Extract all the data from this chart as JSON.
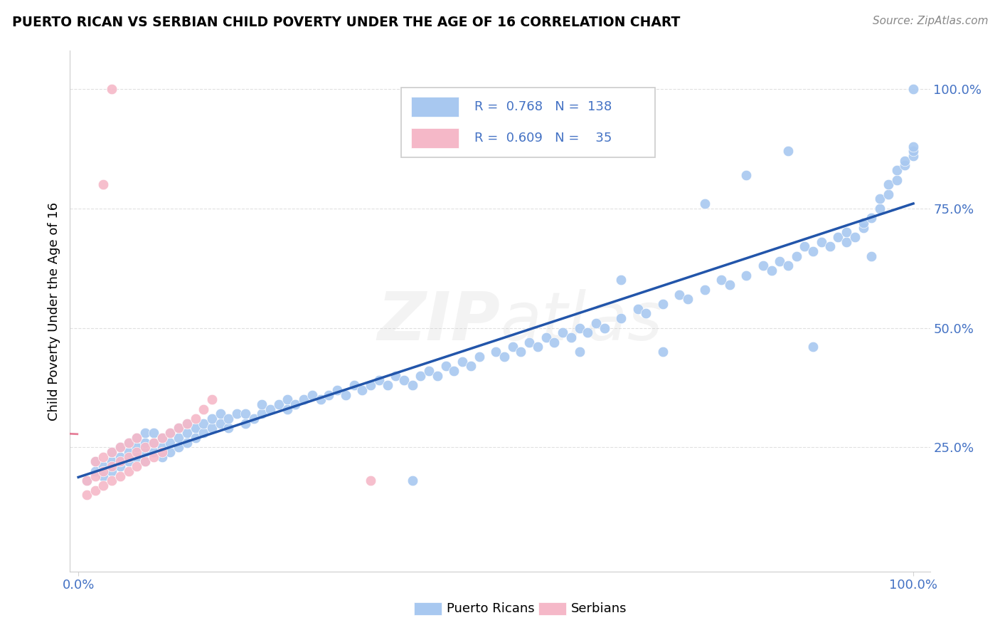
{
  "title": "PUERTO RICAN VS SERBIAN CHILD POVERTY UNDER THE AGE OF 16 CORRELATION CHART",
  "source": "Source: ZipAtlas.com",
  "ylabel": "Child Poverty Under the Age of 16",
  "ytick_labels": [
    "25.0%",
    "50.0%",
    "75.0%",
    "100.0%"
  ],
  "ytick_positions": [
    0.25,
    0.5,
    0.75,
    1.0
  ],
  "pr_color": "#a8c8f0",
  "sr_color": "#f5b8c8",
  "pr_line_color": "#2255aa",
  "sr_line_color": "#e06080",
  "legend_text_color": "#4472c4",
  "watermark": "ZIPatlas",
  "pr_x": [
    0.01,
    0.02,
    0.02,
    0.03,
    0.03,
    0.04,
    0.04,
    0.04,
    0.05,
    0.05,
    0.05,
    0.06,
    0.06,
    0.06,
    0.07,
    0.07,
    0.07,
    0.08,
    0.08,
    0.08,
    0.08,
    0.09,
    0.09,
    0.09,
    0.1,
    0.1,
    0.1,
    0.11,
    0.11,
    0.11,
    0.12,
    0.12,
    0.12,
    0.13,
    0.13,
    0.13,
    0.14,
    0.14,
    0.15,
    0.15,
    0.16,
    0.16,
    0.17,
    0.17,
    0.18,
    0.18,
    0.19,
    0.2,
    0.2,
    0.21,
    0.22,
    0.22,
    0.23,
    0.24,
    0.25,
    0.25,
    0.26,
    0.27,
    0.28,
    0.29,
    0.3,
    0.31,
    0.32,
    0.33,
    0.34,
    0.35,
    0.36,
    0.37,
    0.38,
    0.39,
    0.4,
    0.41,
    0.42,
    0.43,
    0.44,
    0.45,
    0.46,
    0.47,
    0.48,
    0.5,
    0.51,
    0.52,
    0.53,
    0.54,
    0.55,
    0.56,
    0.57,
    0.58,
    0.59,
    0.6,
    0.61,
    0.62,
    0.63,
    0.65,
    0.67,
    0.68,
    0.7,
    0.72,
    0.73,
    0.75,
    0.77,
    0.78,
    0.8,
    0.82,
    0.83,
    0.84,
    0.85,
    0.86,
    0.87,
    0.88,
    0.89,
    0.9,
    0.91,
    0.92,
    0.92,
    0.93,
    0.94,
    0.94,
    0.95,
    0.96,
    0.96,
    0.97,
    0.97,
    0.98,
    0.98,
    0.99,
    0.99,
    1.0,
    1.0,
    1.0,
    1.0,
    0.75,
    0.8,
    0.85,
    0.88,
    0.95,
    0.6,
    0.65,
    0.7,
    0.4
  ],
  "pr_y": [
    0.18,
    0.2,
    0.22,
    0.19,
    0.21,
    0.2,
    0.22,
    0.24,
    0.21,
    0.23,
    0.25,
    0.22,
    0.24,
    0.26,
    0.23,
    0.25,
    0.27,
    0.22,
    0.24,
    0.26,
    0.28,
    0.24,
    0.26,
    0.28,
    0.23,
    0.25,
    0.27,
    0.24,
    0.26,
    0.28,
    0.25,
    0.27,
    0.29,
    0.26,
    0.28,
    0.3,
    0.27,
    0.29,
    0.28,
    0.3,
    0.29,
    0.31,
    0.3,
    0.32,
    0.29,
    0.31,
    0.32,
    0.3,
    0.32,
    0.31,
    0.32,
    0.34,
    0.33,
    0.34,
    0.33,
    0.35,
    0.34,
    0.35,
    0.36,
    0.35,
    0.36,
    0.37,
    0.36,
    0.38,
    0.37,
    0.38,
    0.39,
    0.38,
    0.4,
    0.39,
    0.38,
    0.4,
    0.41,
    0.4,
    0.42,
    0.41,
    0.43,
    0.42,
    0.44,
    0.45,
    0.44,
    0.46,
    0.45,
    0.47,
    0.46,
    0.48,
    0.47,
    0.49,
    0.48,
    0.5,
    0.49,
    0.51,
    0.5,
    0.52,
    0.54,
    0.53,
    0.55,
    0.57,
    0.56,
    0.58,
    0.6,
    0.59,
    0.61,
    0.63,
    0.62,
    0.64,
    0.63,
    0.65,
    0.67,
    0.66,
    0.68,
    0.67,
    0.69,
    0.68,
    0.7,
    0.69,
    0.71,
    0.72,
    0.73,
    0.75,
    0.77,
    0.78,
    0.8,
    0.81,
    0.83,
    0.84,
    0.85,
    0.86,
    0.87,
    0.88,
    1.0,
    0.76,
    0.82,
    0.87,
    0.46,
    0.65,
    0.45,
    0.6,
    0.45,
    0.18
  ],
  "sr_x": [
    0.01,
    0.01,
    0.02,
    0.02,
    0.02,
    0.03,
    0.03,
    0.03,
    0.04,
    0.04,
    0.04,
    0.05,
    0.05,
    0.05,
    0.06,
    0.06,
    0.06,
    0.07,
    0.07,
    0.07,
    0.08,
    0.08,
    0.09,
    0.09,
    0.1,
    0.1,
    0.11,
    0.12,
    0.13,
    0.14,
    0.15,
    0.16,
    0.03,
    0.04,
    0.35
  ],
  "sr_y": [
    0.15,
    0.18,
    0.16,
    0.19,
    0.22,
    0.17,
    0.2,
    0.23,
    0.18,
    0.21,
    0.24,
    0.19,
    0.22,
    0.25,
    0.2,
    0.23,
    0.26,
    0.21,
    0.24,
    0.27,
    0.22,
    0.25,
    0.23,
    0.26,
    0.24,
    0.27,
    0.28,
    0.29,
    0.3,
    0.31,
    0.33,
    0.35,
    0.8,
    1.0,
    0.18
  ]
}
